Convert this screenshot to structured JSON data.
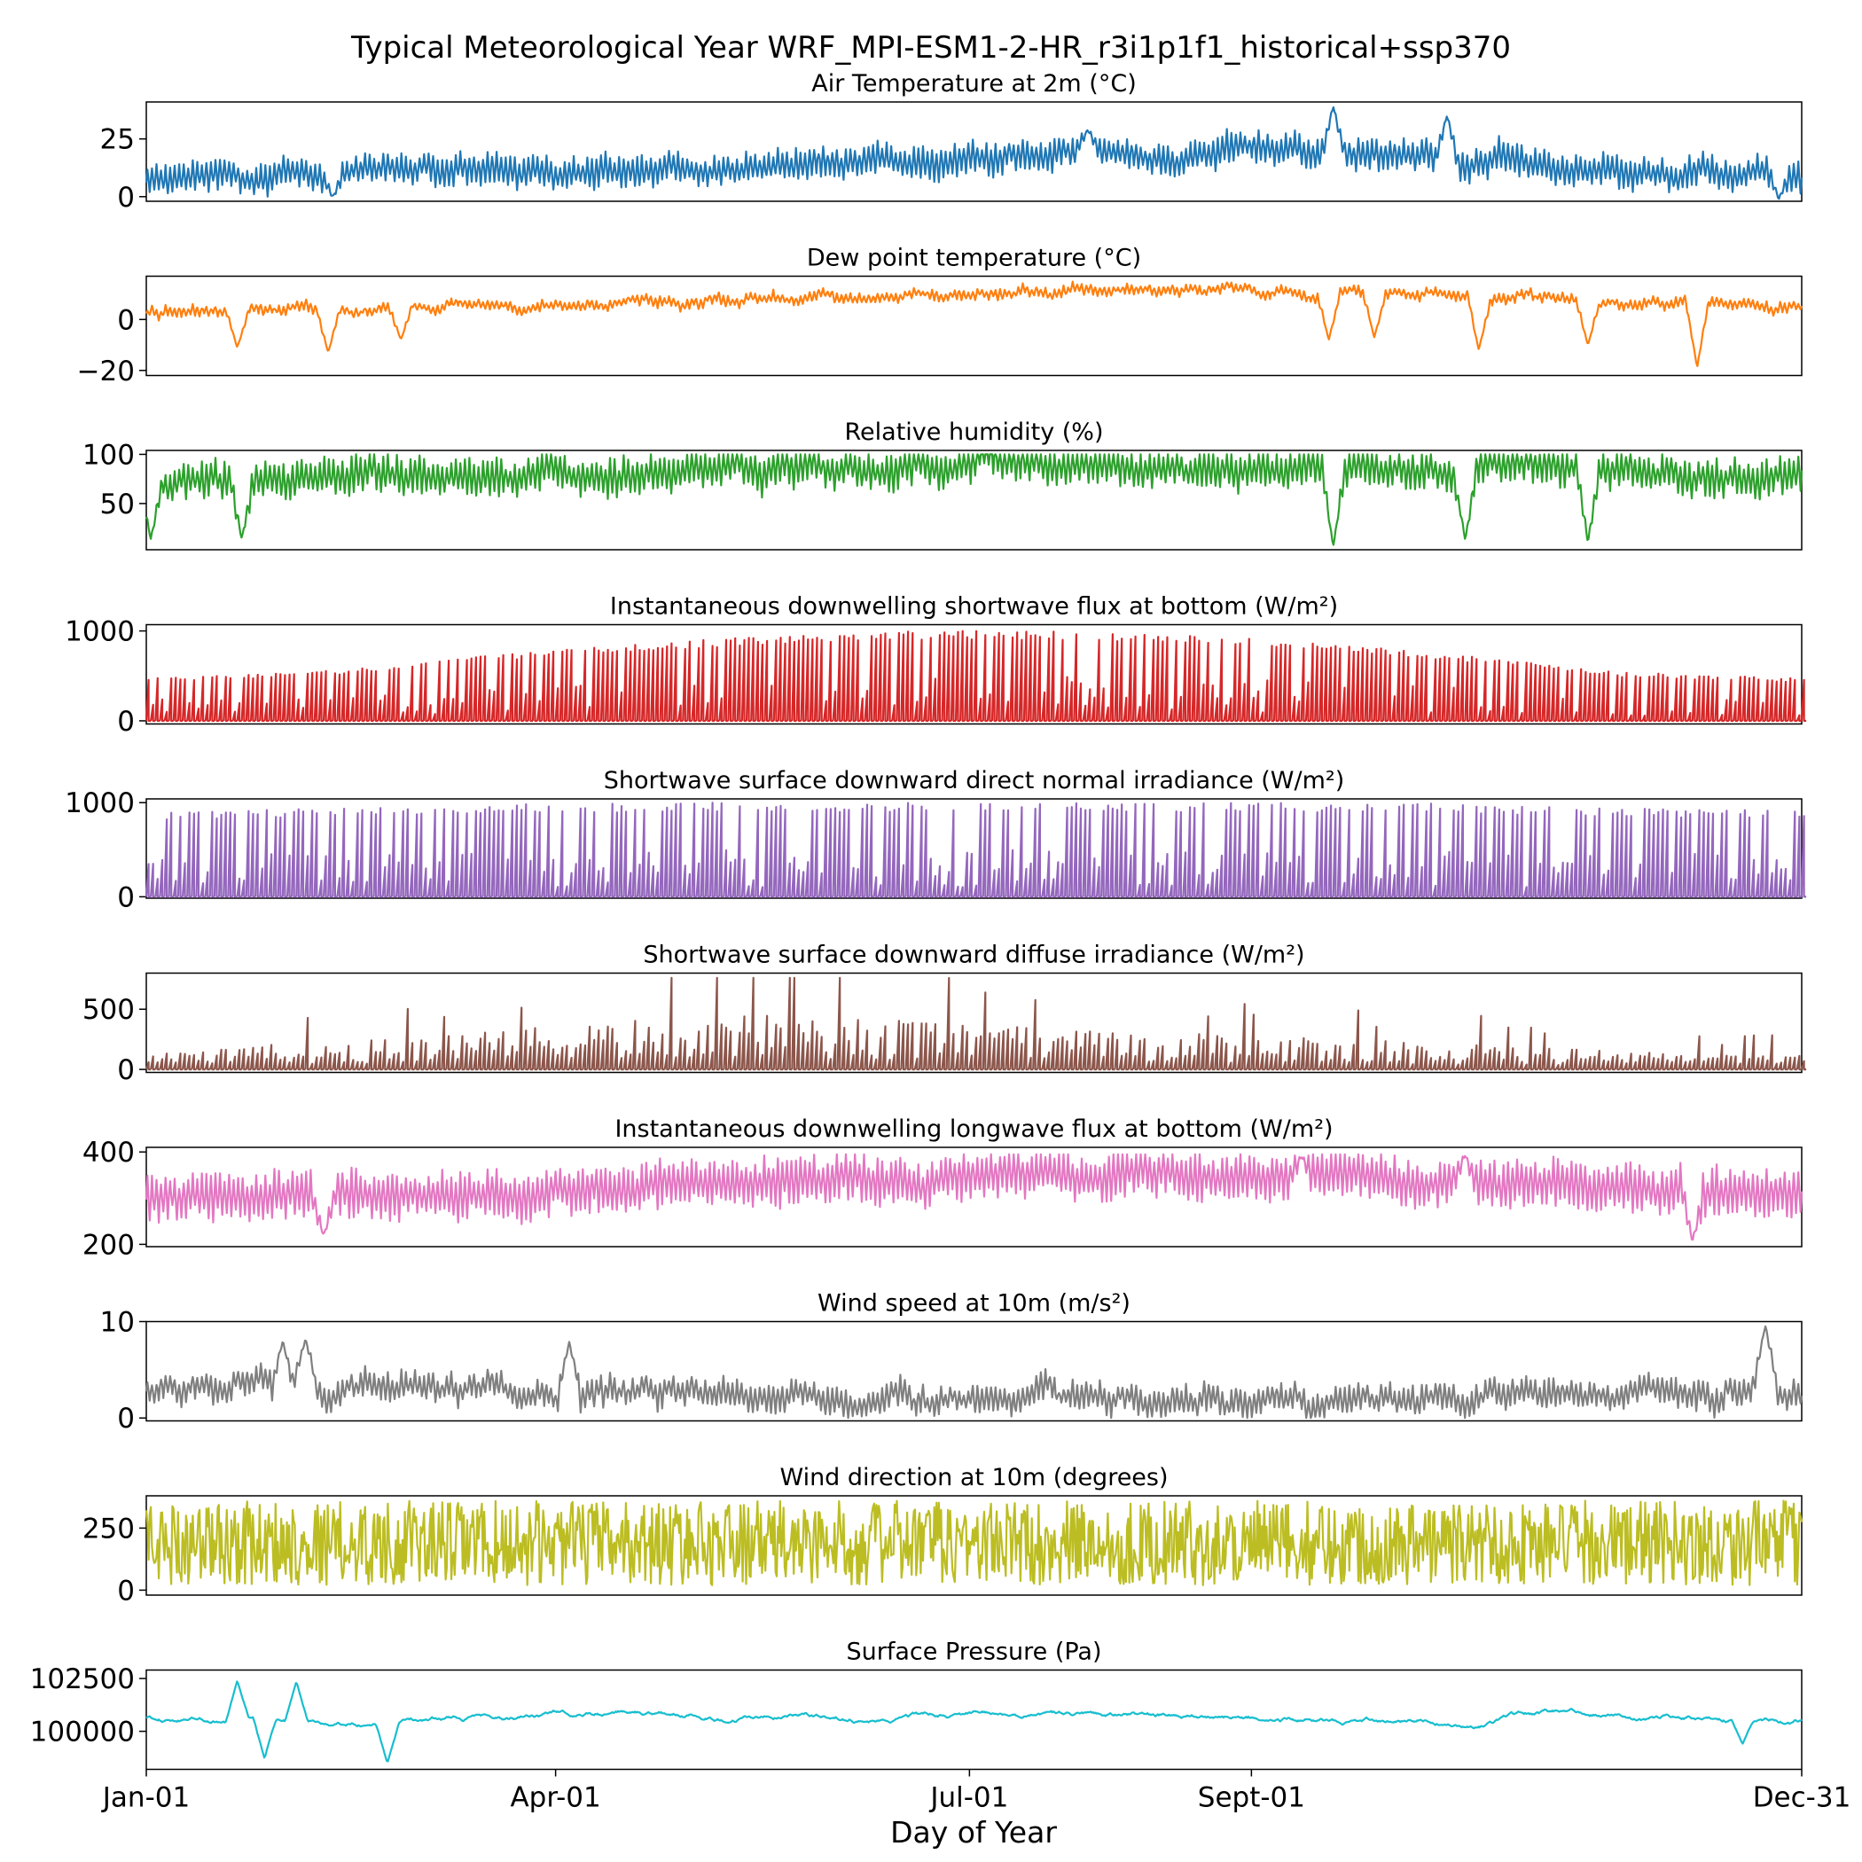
{
  "figure": {
    "title": "Typical Meteorological Year WRF_MPI-ESM1-2-HR_r3i1p1f1_historical+ssp370",
    "xlabel": "Day of Year",
    "x_ticks": [
      {
        "label": "Jan-01",
        "day": 1
      },
      {
        "label": "Apr-01",
        "day": 91
      },
      {
        "label": "Jul-01",
        "day": 182
      },
      {
        "label": "Sept-01",
        "day": 244
      },
      {
        "label": "Dec-31",
        "day": 365
      }
    ],
    "x_range": [
      1,
      365
    ]
  },
  "chart_data": [
    {
      "type": "line",
      "id": "t2",
      "title": "Air Temperature at 2m (°C)",
      "color": "#1f77b4",
      "ylim": [
        -2,
        41
      ],
      "yticks": [
        0,
        25
      ],
      "profile": {
        "base": [
          7,
          9,
          11,
          13,
          17,
          20,
          19,
          13,
          8
        ],
        "diurnal": 7,
        "noise": 4,
        "min": -1,
        "max": 39
      },
      "events": [
        {
          "day": 262,
          "value": 39
        },
        {
          "day": 208,
          "value": 29
        },
        {
          "day": 287,
          "value": 35
        },
        {
          "day": 360,
          "value": -1
        },
        {
          "day": 42,
          "value": 0
        }
      ]
    },
    {
      "type": "line",
      "id": "d2",
      "title": "Dew point temperature (°C)",
      "color": "#ff7f0e",
      "ylim": [
        -22,
        17
      ],
      "yticks": [
        -20,
        0
      ],
      "profile": {
        "base": [
          3,
          4,
          6,
          8,
          10,
          12,
          11,
          7,
          4
        ],
        "diurnal": 2,
        "noise": 3,
        "min": -20,
        "max": 16
      },
      "events": [
        {
          "day": 21,
          "value": -11
        },
        {
          "day": 41,
          "value": -13
        },
        {
          "day": 57,
          "value": -8
        },
        {
          "day": 261,
          "value": -8
        },
        {
          "day": 271,
          "value": -7
        },
        {
          "day": 294,
          "value": -12
        },
        {
          "day": 318,
          "value": -10
        },
        {
          "day": 342,
          "value": -19
        }
      ]
    },
    {
      "type": "line",
      "id": "rh",
      "title": "Relative humidity (%)",
      "color": "#2ca02c",
      "ylim": [
        3,
        104
      ],
      "yticks": [
        50,
        100
      ],
      "profile": {
        "base": [
          70,
          78,
          82,
          85,
          88,
          86,
          84,
          82,
          80
        ],
        "diurnal": 20,
        "noise": 12,
        "min": 8,
        "max": 100
      },
      "events": [
        {
          "day": 2,
          "value": 14
        },
        {
          "day": 22,
          "value": 14
        },
        {
          "day": 262,
          "value": 5
        },
        {
          "day": 291,
          "value": 13
        },
        {
          "day": 318,
          "value": 10
        }
      ]
    },
    {
      "type": "solar",
      "id": "swdown",
      "title": "Instantaneous downwelling shortwave flux at bottom",
      "unit": "(W/m²)",
      "color": "#d62728",
      "ylim": [
        -35,
        1070
      ],
      "yticks": [
        0,
        1000
      ],
      "profile": {
        "peak_env": [
          470,
          560,
          760,
          900,
          1000,
          1000,
          930,
          760,
          540,
          470
        ],
        "cloudiness": 0.25
      }
    },
    {
      "type": "solar",
      "id": "dni",
      "title": "Shortwave surface downward direct normal irradiance",
      "unit": "(W/m²)",
      "color": "#9467bd",
      "ylim": [
        -15,
        1040
      ],
      "yticks": [
        0,
        1000
      ],
      "profile": {
        "peak_env": [
          900,
          950,
          990,
          1000,
          1000,
          1000,
          1000,
          990,
          940,
          920
        ],
        "cloudiness": 0.45
      }
    },
    {
      "type": "spiky",
      "id": "dif",
      "title": "Shortwave surface downward diffuse irradiance",
      "unit": "(W/m²)",
      "color": "#8c564b",
      "ylim": [
        -25,
        800
      ],
      "yticks": [
        0,
        500
      ],
      "profile": {
        "base_env": [
          160,
          200,
          300,
          420,
          380,
          300,
          260,
          200,
          140,
          110
        ],
        "spike_max": 760
      }
    },
    {
      "type": "line",
      "id": "glw",
      "title": "Instantaneous downwelling longwave flux at bottom",
      "unit": "(W/m²)",
      "color": "#e377c2",
      "ylim": [
        195,
        410
      ],
      "yticks": [
        200,
        400
      ],
      "profile": {
        "base": [
          300,
          305,
          320,
          330,
          350,
          355,
          345,
          320,
          310
        ],
        "diurnal": 55,
        "noise": 20,
        "min": 210,
        "max": 395
      },
      "events": [
        {
          "day": 40,
          "value": 220
        },
        {
          "day": 341,
          "value": 205
        },
        {
          "day": 255,
          "value": 390
        },
        {
          "day": 291,
          "value": 393
        }
      ]
    },
    {
      "type": "line",
      "id": "ws",
      "title": "Wind speed at 10m",
      "unit": "(m/s²)",
      "color": "#7f7f7f",
      "ylim": [
        -0.3,
        10
      ],
      "yticks": [
        0,
        10
      ],
      "profile": {
        "base": [
          2.5,
          3,
          3,
          2.5,
          2.2,
          2.2,
          2.0,
          2.3,
          2.8
        ],
        "diurnal": 1.5,
        "noise": 1.6,
        "min": 0,
        "max": 9.5
      },
      "events": [
        {
          "day": 31,
          "value": 8
        },
        {
          "day": 36,
          "value": 8.2
        },
        {
          "day": 94,
          "value": 7.9
        },
        {
          "day": 357,
          "value": 9.6
        }
      ]
    },
    {
      "type": "wind",
      "id": "wd",
      "title": "Wind direction at 10m (degrees)",
      "color": "#bcbd22",
      "ylim": [
        -20,
        380
      ],
      "yticks": [
        0,
        250
      ],
      "profile": {
        "center": 190,
        "spread": 170
      }
    },
    {
      "type": "line",
      "id": "psfc",
      "title": "Surface Pressure (Pa)",
      "color": "#17becf",
      "ylim": [
        98200,
        102900
      ],
      "yticks": [
        100000,
        102500
      ],
      "profile": {
        "base": [
          100600,
          100500,
          100800,
          100900,
          100700,
          100600,
          100500,
          100900,
          100700
        ],
        "diurnal": 0,
        "noise": 600,
        "min": 98500,
        "max": 102500,
        "smooth": true
      },
      "events": [
        {
          "day": 21,
          "value": 102400
        },
        {
          "day": 34,
          "value": 102350
        },
        {
          "day": 27,
          "value": 98700
        },
        {
          "day": 54,
          "value": 98500
        },
        {
          "day": 352,
          "value": 99400
        }
      ]
    }
  ]
}
